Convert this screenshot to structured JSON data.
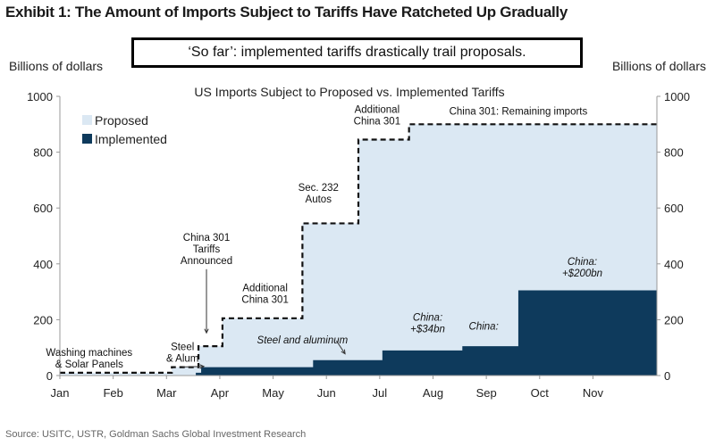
{
  "exhibit_title": "Exhibit 1: The Amount of Imports Subject to Tariffs Have Ratcheted Up Gradually",
  "callout": "‘So far’: implemented tariffs drastically trail proposals.",
  "source": "Source: USITC, USTR, Goldman Sachs Global Investment Research",
  "colors": {
    "proposed": "#dbe8f3",
    "implemented": "#0e3a5c",
    "dashed_line": "#111111",
    "axis": "#999999"
  },
  "chart_data": {
    "type": "area",
    "title": "US Imports Subject to Proposed vs. Implemented Tariffs",
    "ylabel_left": "Billions of dollars",
    "ylabel_right": "Billions of dollars",
    "x_tick_labels": [
      "Jan",
      "Feb",
      "Mar",
      "Apr",
      "May",
      "Jun",
      "Jul",
      "Aug",
      "Sep",
      "Oct",
      "Nov"
    ],
    "xlim": [
      0,
      11.2
    ],
    "ylim": [
      0,
      1000
    ],
    "y_ticks": [
      0,
      200,
      400,
      600,
      800,
      1000
    ],
    "grid": false,
    "legend_position": "top-left",
    "series": [
      {
        "name": "Proposed",
        "style": "filled area with dashed step outline",
        "steps": [
          {
            "x": 0.0,
            "y": 10
          },
          {
            "x": 1.0,
            "y": 10
          },
          {
            "x": 2.1,
            "y": 30
          },
          {
            "x": 2.6,
            "y": 105
          },
          {
            "x": 3.05,
            "y": 205
          },
          {
            "x": 4.55,
            "y": 545
          },
          {
            "x": 5.6,
            "y": 845
          },
          {
            "x": 6.55,
            "y": 900
          },
          {
            "x": 11.2,
            "y": 900
          }
        ]
      },
      {
        "name": "Implemented",
        "style": "filled step area",
        "steps": [
          {
            "x": 0.0,
            "y": 0
          },
          {
            "x": 2.55,
            "y": 10
          },
          {
            "x": 2.65,
            "y": 30
          },
          {
            "x": 4.75,
            "y": 55
          },
          {
            "x": 6.05,
            "y": 90
          },
          {
            "x": 7.55,
            "y": 105
          },
          {
            "x": 8.6,
            "y": 305
          },
          {
            "x": 11.2,
            "y": 305
          }
        ]
      }
    ],
    "annotations": [
      {
        "lines": [
          "Washing machines",
          "& Solar Panels"
        ],
        "x": 0.55,
        "y": 28,
        "italic": false,
        "arrow": false
      },
      {
        "lines": [
          "Steel",
          "& Alum"
        ],
        "x": 2.3,
        "y": 50,
        "italic": false,
        "arrow": true,
        "arrow_to": [
          2.7,
          20
        ]
      },
      {
        "lines": [
          "China 301",
          "Tariffs",
          "Announced"
        ],
        "x": 2.75,
        "y": 400,
        "italic": false,
        "arrow": true,
        "arrow_to": [
          2.75,
          140
        ]
      },
      {
        "lines": [
          "Additional",
          "China 301"
        ],
        "x": 3.85,
        "y": 260,
        "italic": false,
        "arrow": false
      },
      {
        "lines": [
          "Steel and aluminum"
        ],
        "x": 4.55,
        "y": 115,
        "italic": true,
        "arrow": true,
        "arrow_to": [
          5.35,
          65
        ]
      },
      {
        "lines": [
          "Sec. 232",
          "Autos"
        ],
        "x": 4.85,
        "y": 620,
        "italic": false,
        "arrow": false
      },
      {
        "lines": [
          "Additional",
          "China 301"
        ],
        "x": 5.95,
        "y": 900,
        "italic": false,
        "arrow": false
      },
      {
        "lines": [
          "China 301: Remaining imports"
        ],
        "x": 8.6,
        "y": 935,
        "italic": false,
        "arrow": false
      },
      {
        "lines": [
          "China:",
          "+$34bn"
        ],
        "x": 6.9,
        "y": 155,
        "italic": true,
        "arrow": false
      },
      {
        "lines": [
          "China:"
        ],
        "x": 7.95,
        "y": 165,
        "italic": true,
        "arrow": false
      },
      {
        "lines": [
          "China:",
          "+$200bn"
        ],
        "x": 9.8,
        "y": 355,
        "italic": true,
        "arrow": false
      }
    ]
  }
}
